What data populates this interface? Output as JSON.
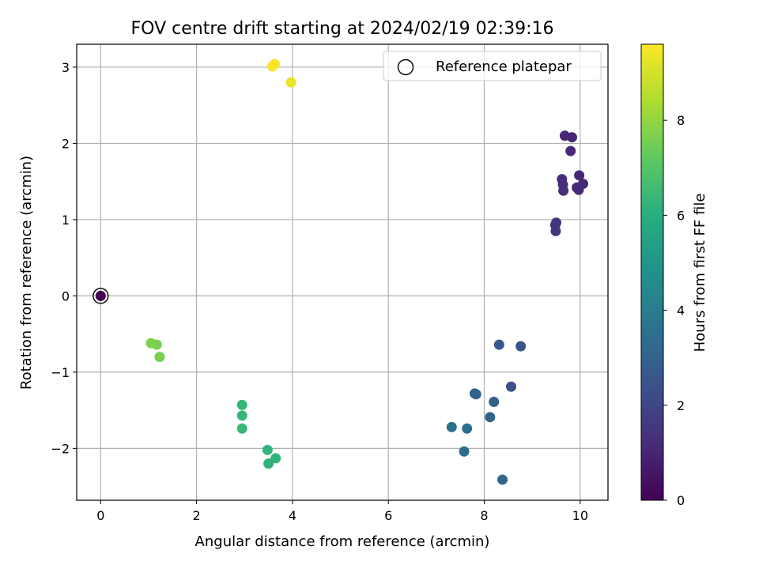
{
  "chart_data": {
    "type": "scatter",
    "title": "FOV centre drift starting at 2024/02/19 02:39:16",
    "xlabel": "Angular distance from reference (arcmin)",
    "ylabel": "Rotation from reference (arcmin)",
    "xlim": [
      -0.5,
      10.58
    ],
    "ylim": [
      -2.68,
      3.3
    ],
    "xticks": [
      "0",
      "2",
      "4",
      "6",
      "8",
      "10"
    ],
    "yticks": [
      "−2",
      "−1",
      "0",
      "1",
      "2",
      "3"
    ],
    "grid": true,
    "legend": {
      "placement": "top-right",
      "entries": [
        "Reference platepar"
      ]
    },
    "colorbar": {
      "label": "Hours from first FF file",
      "range": [
        0,
        9.6
      ],
      "ticks": [
        "0",
        "2",
        "4",
        "6",
        "8"
      ],
      "colormap": "viridis"
    },
    "reference_point": {
      "x": 0,
      "y": 0
    },
    "points": [
      {
        "x": 0,
        "y": 0,
        "c": 0.0
      },
      {
        "x": 9.68,
        "y": 2.1,
        "c": 1.0
      },
      {
        "x": 9.83,
        "y": 2.08,
        "c": 1.05
      },
      {
        "x": 9.8,
        "y": 1.9,
        "c": 1.1
      },
      {
        "x": 9.62,
        "y": 1.53,
        "c": 1.15
      },
      {
        "x": 9.64,
        "y": 1.46,
        "c": 1.2
      },
      {
        "x": 9.65,
        "y": 1.38,
        "c": 1.25
      },
      {
        "x": 9.98,
        "y": 1.58,
        "c": 1.0
      },
      {
        "x": 10.06,
        "y": 1.47,
        "c": 1.05
      },
      {
        "x": 9.93,
        "y": 1.42,
        "c": 1.1
      },
      {
        "x": 9.97,
        "y": 1.39,
        "c": 1.15
      },
      {
        "x": 9.5,
        "y": 0.96,
        "c": 1.4
      },
      {
        "x": 9.48,
        "y": 0.93,
        "c": 1.45
      },
      {
        "x": 9.49,
        "y": 0.85,
        "c": 1.5
      },
      {
        "x": 8.31,
        "y": -0.64,
        "c": 2.6
      },
      {
        "x": 8.76,
        "y": -0.66,
        "c": 2.4
      },
      {
        "x": 8.56,
        "y": -1.19,
        "c": 2.3
      },
      {
        "x": 7.8,
        "y": -1.28,
        "c": 3.0
      },
      {
        "x": 7.83,
        "y": -1.29,
        "c": 3.05
      },
      {
        "x": 8.2,
        "y": -1.39,
        "c": 2.9
      },
      {
        "x": 8.12,
        "y": -1.59,
        "c": 3.1
      },
      {
        "x": 7.32,
        "y": -1.72,
        "c": 3.6
      },
      {
        "x": 7.64,
        "y": -1.74,
        "c": 3.5
      },
      {
        "x": 7.58,
        "y": -2.04,
        "c": 3.4
      },
      {
        "x": 8.38,
        "y": -2.41,
        "c": 3.2
      },
      {
        "x": 2.95,
        "y": -1.43,
        "c": 6.3
      },
      {
        "x": 2.95,
        "y": -1.57,
        "c": 6.35
      },
      {
        "x": 2.95,
        "y": -1.74,
        "c": 6.4
      },
      {
        "x": 3.48,
        "y": -2.02,
        "c": 6.2
      },
      {
        "x": 3.65,
        "y": -2.13,
        "c": 6.25
      },
      {
        "x": 3.5,
        "y": -2.2,
        "c": 6.15
      },
      {
        "x": 1.05,
        "y": -0.62,
        "c": 7.7
      },
      {
        "x": 1.17,
        "y": -0.64,
        "c": 7.65
      },
      {
        "x": 1.23,
        "y": -0.8,
        "c": 7.6
      },
      {
        "x": 3.58,
        "y": 3.01,
        "c": 9.55
      },
      {
        "x": 3.63,
        "y": 3.04,
        "c": 9.5
      },
      {
        "x": 3.97,
        "y": 2.8,
        "c": 9.3
      }
    ]
  }
}
